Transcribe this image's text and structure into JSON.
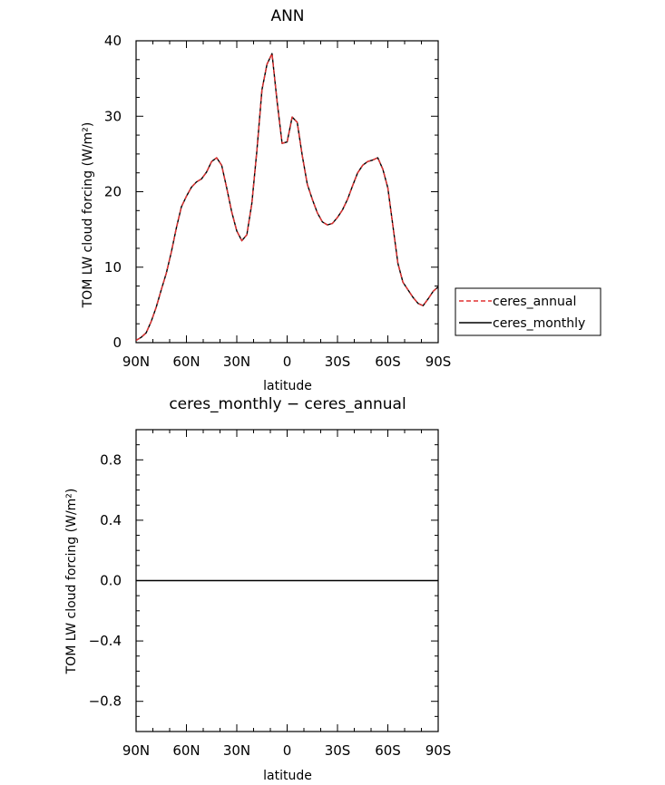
{
  "chart_data": [
    {
      "type": "line",
      "title": "ANN",
      "xlabel": "latitude",
      "ylabel": "TOM LW cloud forcing (W/m²)",
      "xlim": [
        90,
        -90
      ],
      "ylim": [
        0,
        40
      ],
      "x_ticks": [
        90,
        60,
        30,
        0,
        -30,
        -60,
        -90
      ],
      "x_tick_labels": [
        "90N",
        "60N",
        "30N",
        "0",
        "30S",
        "60S",
        "90S"
      ],
      "y_ticks": [
        0,
        10,
        20,
        30,
        40
      ],
      "y_tick_labels": [
        "0",
        "10",
        "20",
        "30",
        "40"
      ],
      "legend_position": "right",
      "series": [
        {
          "name": "ceres_annual",
          "color": "#e03030",
          "dash": "dashed",
          "x": [
            90,
            87,
            84,
            81,
            78,
            75,
            72,
            69,
            66,
            63,
            60,
            57,
            54,
            51,
            48,
            45,
            42,
            39,
            36,
            33,
            30,
            27,
            24,
            21,
            18,
            15,
            12,
            9,
            6,
            3,
            0,
            -3,
            -6,
            -9,
            -12,
            -15,
            -18,
            -21,
            -24,
            -27,
            -30,
            -33,
            -36,
            -39,
            -42,
            -45,
            -48,
            -51,
            -54,
            -57,
            -60,
            -63,
            -66,
            -69,
            -72,
            -75,
            -78,
            -81,
            -84,
            -87,
            -90
          ],
          "y": [
            0.3,
            0.7,
            1.3,
            2.8,
            4.7,
            7.0,
            9.2,
            12.0,
            15.2,
            18.0,
            19.4,
            20.6,
            21.3,
            21.7,
            22.6,
            24.0,
            24.5,
            23.5,
            20.5,
            17.3,
            14.8,
            13.5,
            14.3,
            18.5,
            25.5,
            33.5,
            36.9,
            38.3,
            32.0,
            26.4,
            26.6,
            29.9,
            29.2,
            24.8,
            21.0,
            19.0,
            17.2,
            16.0,
            15.6,
            15.8,
            16.6,
            17.6,
            19.0,
            20.8,
            22.5,
            23.5,
            24.0,
            24.2,
            24.5,
            23.0,
            20.5,
            15.5,
            10.5,
            8.0,
            7.0,
            6.0,
            5.2,
            4.9,
            5.8,
            6.8,
            7.4
          ]
        },
        {
          "name": "ceres_monthly",
          "color": "#000000",
          "dash": "solid",
          "x": [
            90,
            87,
            84,
            81,
            78,
            75,
            72,
            69,
            66,
            63,
            60,
            57,
            54,
            51,
            48,
            45,
            42,
            39,
            36,
            33,
            30,
            27,
            24,
            21,
            18,
            15,
            12,
            9,
            6,
            3,
            0,
            -3,
            -6,
            -9,
            -12,
            -15,
            -18,
            -21,
            -24,
            -27,
            -30,
            -33,
            -36,
            -39,
            -42,
            -45,
            -48,
            -51,
            -54,
            -57,
            -60,
            -63,
            -66,
            -69,
            -72,
            -75,
            -78,
            -81,
            -84,
            -87,
            -90
          ],
          "y": [
            0.3,
            0.7,
            1.3,
            2.8,
            4.7,
            7.0,
            9.2,
            12.0,
            15.2,
            18.0,
            19.4,
            20.6,
            21.3,
            21.7,
            22.6,
            24.0,
            24.5,
            23.5,
            20.5,
            17.3,
            14.8,
            13.5,
            14.3,
            18.5,
            25.5,
            33.5,
            36.9,
            38.3,
            32.0,
            26.4,
            26.6,
            29.9,
            29.2,
            24.8,
            21.0,
            19.0,
            17.2,
            16.0,
            15.6,
            15.8,
            16.6,
            17.6,
            19.0,
            20.8,
            22.5,
            23.5,
            24.0,
            24.2,
            24.5,
            23.0,
            20.5,
            15.5,
            10.5,
            8.0,
            7.0,
            6.0,
            5.2,
            4.9,
            5.8,
            6.8,
            7.4
          ]
        }
      ]
    },
    {
      "type": "line",
      "title": "ceres_monthly − ceres_annual",
      "xlabel": "latitude",
      "ylabel": "TOM LW cloud forcing (W/m²)",
      "xlim": [
        90,
        -90
      ],
      "ylim": [
        -1,
        1
      ],
      "x_ticks": [
        90,
        60,
        30,
        0,
        -30,
        -60,
        -90
      ],
      "x_tick_labels": [
        "90N",
        "60N",
        "30N",
        "0",
        "30S",
        "60S",
        "90S"
      ],
      "y_ticks": [
        -0.8,
        -0.4,
        0.0,
        0.4,
        0.8
      ],
      "y_tick_labels": [
        "−0.8",
        "−0.4",
        "0.0",
        "0.4",
        "0.8"
      ],
      "series": [
        {
          "color": "#000000",
          "x": [
            90,
            -90
          ],
          "y": [
            0,
            0
          ]
        }
      ]
    }
  ]
}
